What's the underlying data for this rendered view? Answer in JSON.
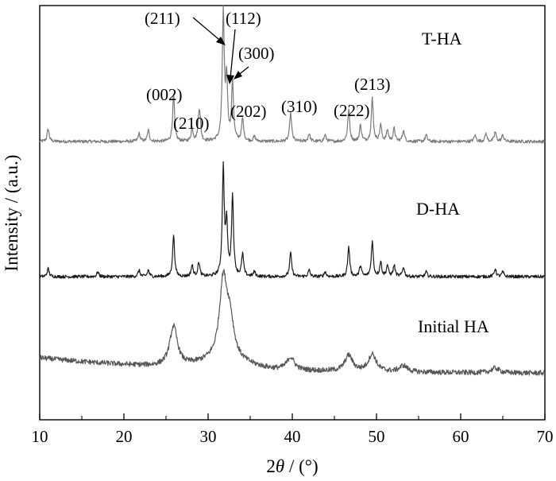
{
  "chart_data": {
    "type": "line",
    "xlabel_prefix": "2",
    "xlabel_symbol": "θ",
    "xlabel_suffix": " / (°)",
    "ylabel": "Intensity / (a.u.)",
    "xlim": [
      10,
      70
    ],
    "xticks": [
      "10",
      "20",
      "30",
      "40",
      "50",
      "60",
      "70"
    ],
    "y_ticks_shown": false,
    "grid": false,
    "series": [
      {
        "name": "T-HA",
        "color": "#7a7a7a",
        "peaks": [
          [
            11.0,
            16
          ],
          [
            21.8,
            10
          ],
          [
            22.9,
            14
          ],
          [
            25.9,
            58
          ],
          [
            28.1,
            16
          ],
          [
            28.9,
            22
          ],
          [
            29.0,
            24
          ],
          [
            31.8,
            160
          ],
          [
            32.2,
            75
          ],
          [
            32.9,
            72
          ],
          [
            34.1,
            28
          ],
          [
            35.5,
            6
          ],
          [
            39.8,
            36
          ],
          [
            42.0,
            10
          ],
          [
            43.9,
            8
          ],
          [
            46.7,
            40
          ],
          [
            48.1,
            20
          ],
          [
            49.5,
            54
          ],
          [
            50.5,
            20
          ],
          [
            51.3,
            14
          ],
          [
            52.1,
            16
          ],
          [
            53.2,
            14
          ],
          [
            55.9,
            8
          ],
          [
            61.7,
            8
          ],
          [
            63.0,
            10
          ],
          [
            64.1,
            12
          ],
          [
            65.0,
            8
          ]
        ]
      },
      {
        "name": "D-HA",
        "color": "#1a1a1a",
        "peaks": [
          [
            11.0,
            10
          ],
          [
            16.9,
            6
          ],
          [
            21.8,
            8
          ],
          [
            22.9,
            8
          ],
          [
            25.9,
            52
          ],
          [
            28.1,
            14
          ],
          [
            28.9,
            18
          ],
          [
            31.8,
            135
          ],
          [
            32.2,
            62
          ],
          [
            32.9,
            100
          ],
          [
            34.1,
            28
          ],
          [
            35.5,
            6
          ],
          [
            39.8,
            30
          ],
          [
            42.0,
            8
          ],
          [
            43.9,
            6
          ],
          [
            46.7,
            38
          ],
          [
            48.1,
            14
          ],
          [
            49.5,
            44
          ],
          [
            50.5,
            18
          ],
          [
            51.3,
            14
          ],
          [
            52.1,
            14
          ],
          [
            53.2,
            12
          ],
          [
            55.9,
            6
          ],
          [
            64.1,
            10
          ],
          [
            65.0,
            6
          ]
        ]
      },
      {
        "name": "Initial HA",
        "color": "#555555",
        "peaks": [
          [
            25.9,
            50
          ],
          [
            31.8,
            98
          ],
          [
            32.6,
            44
          ],
          [
            39.8,
            16
          ],
          [
            46.7,
            20
          ],
          [
            49.5,
            22
          ],
          [
            53.2,
            8
          ],
          [
            64.1,
            6
          ]
        ]
      }
    ],
    "annotations": [
      {
        "text": "(211)",
        "x": 31.8
      },
      {
        "text": "(112)",
        "x": 32.2
      },
      {
        "text": "(300)",
        "x": 32.9
      },
      {
        "text": "(002)",
        "x": 25.9
      },
      {
        "text": "(210)",
        "x": 28.9
      },
      {
        "text": "(202)",
        "x": 34.1
      },
      {
        "text": "(310)",
        "x": 39.8
      },
      {
        "text": "(222)",
        "x": 46.7
      },
      {
        "text": "(213)",
        "x": 49.5
      }
    ]
  }
}
